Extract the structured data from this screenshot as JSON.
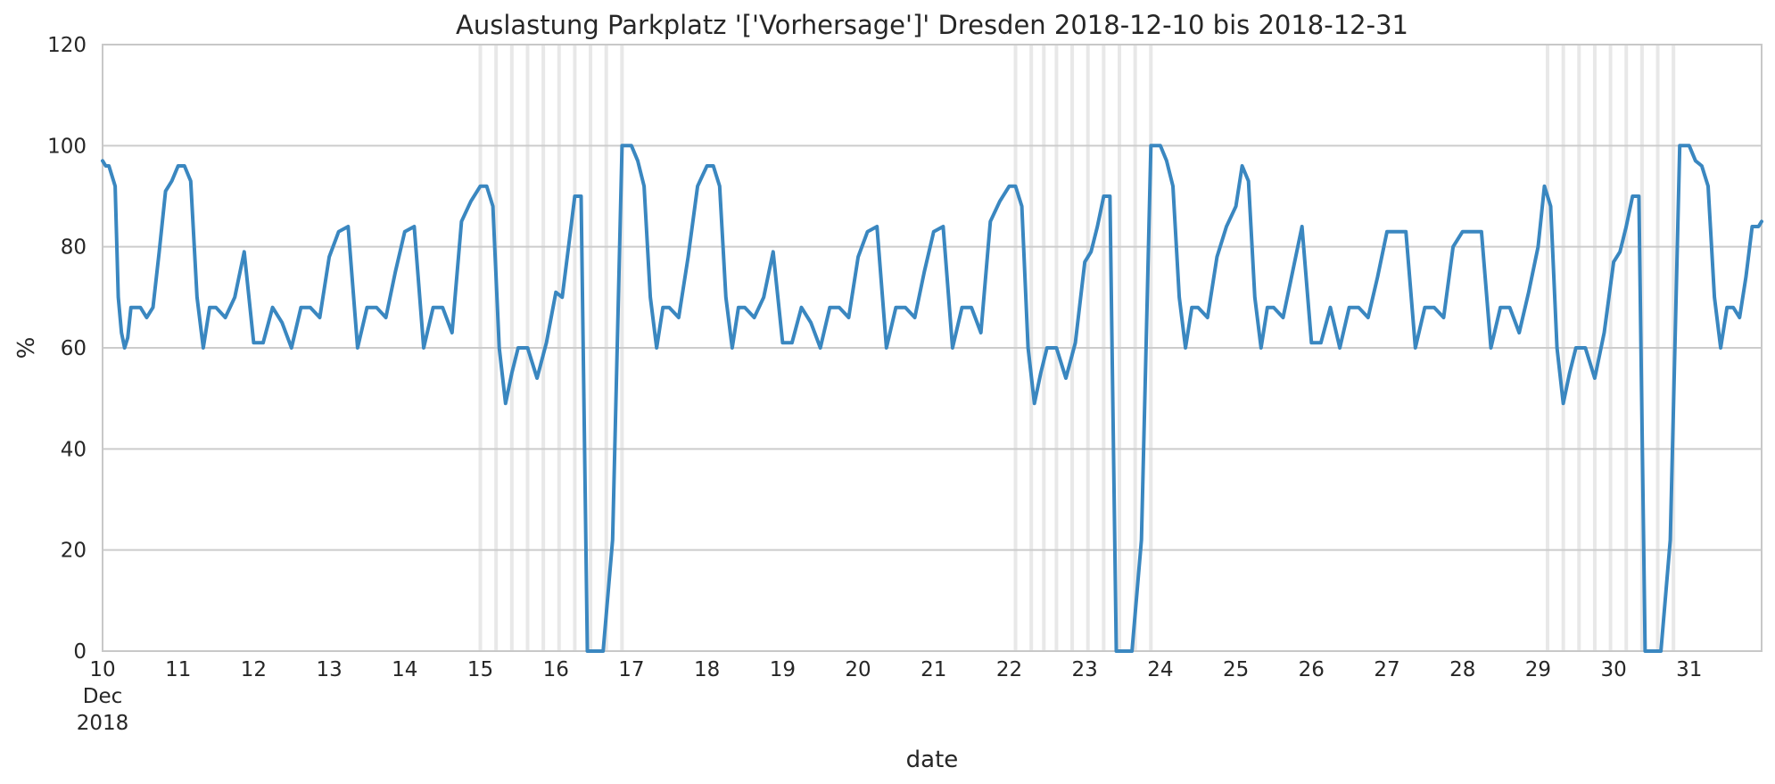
{
  "chart_data": {
    "type": "line",
    "title": "Auslastung Parkplatz '['Vorhersage']' Dresden 2018-12-10 bis 2018-12-31",
    "xlabel": "date",
    "ylabel": "%",
    "ylim": [
      0,
      120
    ],
    "yticks": [
      0,
      20,
      40,
      60,
      80,
      100,
      120
    ],
    "xlim": [
      "2018-12-10 00:00",
      "2018-12-31 23:00"
    ],
    "x_ticks": [
      {
        "date": "2018-12-10",
        "label": "10",
        "sub1": "Dec",
        "sub2": "2018"
      },
      {
        "date": "2018-12-11",
        "label": "11"
      },
      {
        "date": "2018-12-12",
        "label": "12"
      },
      {
        "date": "2018-12-13",
        "label": "13"
      },
      {
        "date": "2018-12-14",
        "label": "14"
      },
      {
        "date": "2018-12-15",
        "label": "15"
      },
      {
        "date": "2018-12-16",
        "label": "16"
      },
      {
        "date": "2018-12-17",
        "label": "17"
      },
      {
        "date": "2018-12-18",
        "label": "18"
      },
      {
        "date": "2018-12-19",
        "label": "19"
      },
      {
        "date": "2018-12-20",
        "label": "20"
      },
      {
        "date": "2018-12-21",
        "label": "21"
      },
      {
        "date": "2018-12-22",
        "label": "22"
      },
      {
        "date": "2018-12-23",
        "label": "23"
      },
      {
        "date": "2018-12-24",
        "label": "24"
      },
      {
        "date": "2018-12-25",
        "label": "25"
      },
      {
        "date": "2018-12-26",
        "label": "26"
      },
      {
        "date": "2018-12-27",
        "label": "27"
      },
      {
        "date": "2018-12-28",
        "label": "28"
      },
      {
        "date": "2018-12-29",
        "label": "29"
      },
      {
        "date": "2018-12-30",
        "label": "30"
      },
      {
        "date": "2018-12-31",
        "label": "31"
      }
    ],
    "grid": true,
    "weekend_markers": [
      "2018-12-15 00:00",
      "2018-12-15 05:00",
      "2018-12-15 10:00",
      "2018-12-15 15:00",
      "2018-12-15 20:00",
      "2018-12-16 01:00",
      "2018-12-16 06:00",
      "2018-12-16 11:00",
      "2018-12-16 16:00",
      "2018-12-16 21:00",
      "2018-12-22 02:00",
      "2018-12-22 07:00",
      "2018-12-22 11:00",
      "2018-12-22 15:00",
      "2018-12-22 20:00",
      "2018-12-23 01:00",
      "2018-12-23 06:00",
      "2018-12-23 11:00",
      "2018-12-23 16:00",
      "2018-12-23 21:00",
      "2018-12-29 03:00",
      "2018-12-29 08:00",
      "2018-12-29 13:00",
      "2018-12-29 18:00",
      "2018-12-29 23:00",
      "2018-12-30 04:00",
      "2018-12-30 09:00",
      "2018-12-30 14:00",
      "2018-12-30 19:00"
    ],
    "series_color": "#3a87c0",
    "marker_color": "#e8e8e8",
    "series": [
      {
        "x": [
          "2018-12-10 00:00",
          "2018-12-10 01:00",
          "2018-12-10 02:00",
          "2018-12-10 03:00",
          "2018-12-10 04:00",
          "2018-12-10 05:00",
          "2018-12-10 06:00",
          "2018-12-10 07:00",
          "2018-12-10 08:00",
          "2018-12-10 09:00",
          "2018-12-10 10:00",
          "2018-12-10 12:00",
          "2018-12-10 14:00",
          "2018-12-10 16:00",
          "2018-12-10 18:00",
          "2018-12-10 20:00",
          "2018-12-10 22:00",
          "2018-12-11 00:00",
          "2018-12-11 02:00",
          "2018-12-11 04:00",
          "2018-12-11 06:00",
          "2018-12-11 08:00",
          "2018-12-11 10:00",
          "2018-12-11 12:00",
          "2018-12-11 15:00",
          "2018-12-11 18:00",
          "2018-12-11 21:00",
          "2018-12-12 00:00",
          "2018-12-12 03:00",
          "2018-12-12 06:00",
          "2018-12-12 09:00",
          "2018-12-12 12:00",
          "2018-12-12 15:00",
          "2018-12-12 18:00",
          "2018-12-12 21:00",
          "2018-12-13 00:00",
          "2018-12-13 03:00",
          "2018-12-13 06:00",
          "2018-12-13 09:00",
          "2018-12-13 12:00",
          "2018-12-13 15:00",
          "2018-12-13 18:00",
          "2018-12-13 21:00",
          "2018-12-14 00:00",
          "2018-12-14 03:00",
          "2018-12-14 06:00",
          "2018-12-14 09:00",
          "2018-12-14 12:00",
          "2018-12-14 15:00",
          "2018-12-14 18:00",
          "2018-12-14 21:00",
          "2018-12-15 00:00",
          "2018-12-15 02:00",
          "2018-12-15 04:00",
          "2018-12-15 06:00",
          "2018-12-15 08:00",
          "2018-12-15 10:00",
          "2018-12-15 12:00",
          "2018-12-15 15:00",
          "2018-12-15 18:00",
          "2018-12-15 21:00",
          "2018-12-16 00:00",
          "2018-12-16 02:00",
          "2018-12-16 04:00",
          "2018-12-16 06:00",
          "2018-12-16 08:00",
          "2018-12-16 10:00",
          "2018-12-16 12:00",
          "2018-12-16 15:00",
          "2018-12-16 18:00",
          "2018-12-16 21:00",
          "2018-12-17 00:00",
          "2018-12-17 02:00",
          "2018-12-17 04:00",
          "2018-12-17 06:00",
          "2018-12-17 08:00",
          "2018-12-17 10:00",
          "2018-12-17 12:00",
          "2018-12-17 15:00",
          "2018-12-17 18:00",
          "2018-12-17 21:00",
          "2018-12-18 00:00",
          "2018-12-18 02:00",
          "2018-12-18 04:00",
          "2018-12-18 06:00",
          "2018-12-18 08:00",
          "2018-12-18 10:00",
          "2018-12-18 12:00",
          "2018-12-18 15:00",
          "2018-12-18 18:00",
          "2018-12-18 21:00",
          "2018-12-19 00:00",
          "2018-12-19 03:00",
          "2018-12-19 06:00",
          "2018-12-19 09:00",
          "2018-12-19 12:00",
          "2018-12-19 15:00",
          "2018-12-19 18:00",
          "2018-12-19 21:00",
          "2018-12-20 00:00",
          "2018-12-20 03:00",
          "2018-12-20 06:00",
          "2018-12-20 09:00",
          "2018-12-20 12:00",
          "2018-12-20 15:00",
          "2018-12-20 18:00",
          "2018-12-20 21:00",
          "2018-12-21 00:00",
          "2018-12-21 03:00",
          "2018-12-21 06:00",
          "2018-12-21 09:00",
          "2018-12-21 12:00",
          "2018-12-21 15:00",
          "2018-12-21 18:00",
          "2018-12-21 21:00",
          "2018-12-22 00:00",
          "2018-12-22 02:00",
          "2018-12-22 04:00",
          "2018-12-22 06:00",
          "2018-12-22 08:00",
          "2018-12-22 10:00",
          "2018-12-22 12:00",
          "2018-12-22 15:00",
          "2018-12-22 18:00",
          "2018-12-22 21:00",
          "2018-12-23 00:00",
          "2018-12-23 02:00",
          "2018-12-23 04:00",
          "2018-12-23 06:00",
          "2018-12-23 08:00",
          "2018-12-23 10:00",
          "2018-12-23 12:00",
          "2018-12-23 15:00",
          "2018-12-23 18:00",
          "2018-12-23 21:00",
          "2018-12-24 00:00",
          "2018-12-24 02:00",
          "2018-12-24 04:00",
          "2018-12-24 06:00",
          "2018-12-24 08:00",
          "2018-12-24 10:00",
          "2018-12-24 12:00",
          "2018-12-24 15:00",
          "2018-12-24 18:00",
          "2018-12-24 21:00",
          "2018-12-25 00:00",
          "2018-12-25 02:00",
          "2018-12-25 04:00",
          "2018-12-25 06:00",
          "2018-12-25 08:00",
          "2018-12-25 10:00",
          "2018-12-25 12:00",
          "2018-12-25 15:00",
          "2018-12-25 18:00",
          "2018-12-25 21:00",
          "2018-12-26 00:00",
          "2018-12-26 03:00",
          "2018-12-26 06:00",
          "2018-12-26 09:00",
          "2018-12-26 12:00",
          "2018-12-26 15:00",
          "2018-12-26 18:00",
          "2018-12-26 21:00",
          "2018-12-27 00:00",
          "2018-12-27 03:00",
          "2018-12-27 06:00",
          "2018-12-27 09:00",
          "2018-12-27 12:00",
          "2018-12-27 15:00",
          "2018-12-27 18:00",
          "2018-12-27 21:00",
          "2018-12-28 00:00",
          "2018-12-28 03:00",
          "2018-12-28 06:00",
          "2018-12-28 09:00",
          "2018-12-28 12:00",
          "2018-12-28 15:00",
          "2018-12-28 18:00",
          "2018-12-28 21:00",
          "2018-12-29 00:00",
          "2018-12-29 02:00",
          "2018-12-29 04:00",
          "2018-12-29 06:00",
          "2018-12-29 08:00",
          "2018-12-29 10:00",
          "2018-12-29 12:00",
          "2018-12-29 15:00",
          "2018-12-29 18:00",
          "2018-12-29 21:00",
          "2018-12-30 00:00",
          "2018-12-30 02:00",
          "2018-12-30 04:00",
          "2018-12-30 06:00",
          "2018-12-30 08:00",
          "2018-12-30 10:00",
          "2018-12-30 12:00",
          "2018-12-30 15:00",
          "2018-12-30 18:00",
          "2018-12-30 21:00",
          "2018-12-31 00:00",
          "2018-12-31 02:00",
          "2018-12-31 04:00",
          "2018-12-31 06:00",
          "2018-12-31 08:00",
          "2018-12-31 10:00",
          "2018-12-31 12:00",
          "2018-12-31 14:00",
          "2018-12-31 16:00",
          "2018-12-31 18:00",
          "2018-12-31 20:00",
          "2018-12-31 22:00",
          "2018-12-31 23:00"
        ],
        "y": [
          97,
          96,
          96,
          94,
          92,
          70,
          63,
          60,
          62,
          68,
          68,
          68,
          66,
          68,
          79,
          91,
          93,
          96,
          96,
          93,
          70,
          60,
          68,
          68,
          66,
          70,
          79,
          61,
          61,
          68,
          65,
          60,
          68,
          68,
          66,
          78,
          83,
          84,
          60,
          68,
          68,
          66,
          75,
          83,
          84,
          60,
          68,
          68,
          63,
          85,
          89,
          92,
          92,
          88,
          60,
          49,
          55,
          60,
          60,
          54,
          61,
          71,
          70,
          80,
          90,
          90,
          0,
          0,
          0,
          22,
          100,
          100,
          97,
          92,
          70,
          60,
          68,
          68,
          66,
          78,
          92,
          96,
          96,
          92,
          70,
          60,
          68,
          68,
          66,
          70,
          79,
          61,
          61,
          68,
          65,
          60,
          68,
          68,
          66,
          78,
          83,
          84,
          60,
          68,
          68,
          66,
          75,
          83,
          84,
          60,
          68,
          68,
          63,
          85,
          89,
          92,
          92,
          88,
          60,
          49,
          55,
          60,
          60,
          54,
          61,
          77,
          79,
          84,
          90,
          90,
          0,
          0,
          0,
          22,
          100,
          100,
          97,
          92,
          70,
          60,
          68,
          68,
          66,
          78,
          84,
          88,
          96,
          93,
          70,
          60,
          68,
          68,
          66,
          75,
          84,
          61,
          61,
          68,
          60,
          68,
          68,
          66,
          74,
          83,
          83,
          83,
          60,
          68,
          68,
          66,
          80,
          83,
          83,
          83,
          60,
          68,
          68,
          63,
          71,
          80,
          92,
          88,
          60,
          49,
          55,
          60,
          60,
          54,
          63,
          77,
          79,
          84,
          90,
          90,
          0,
          0,
          0,
          22,
          100,
          100,
          97,
          96,
          92,
          70,
          60,
          68,
          68,
          66,
          74,
          84,
          84,
          85
        ]
      }
    ]
  }
}
